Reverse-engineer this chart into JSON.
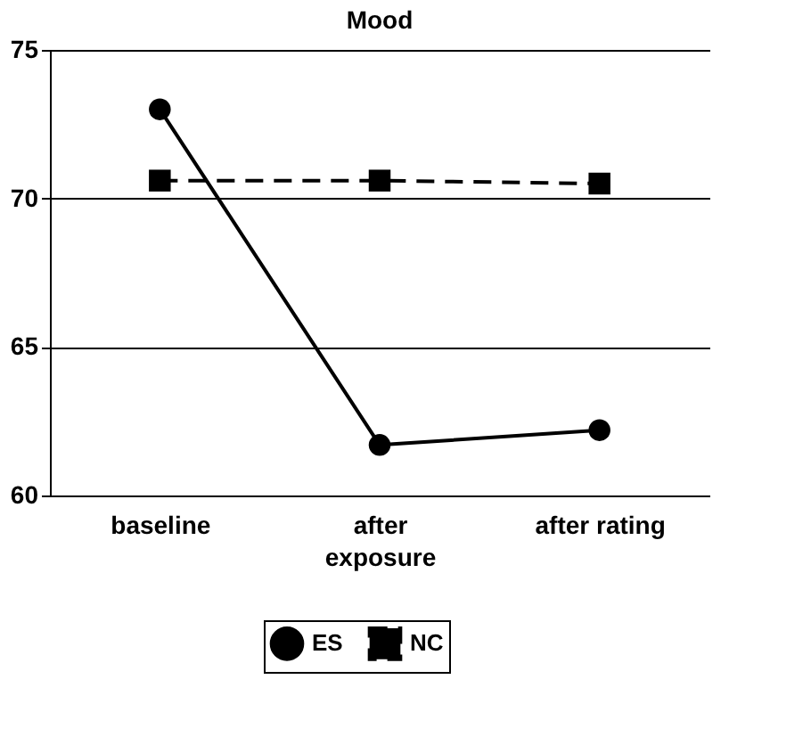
{
  "chart_data": {
    "type": "line",
    "title": "Mood",
    "categories": [
      "baseline",
      "after exposure",
      "after rating"
    ],
    "series": [
      {
        "name": "ES",
        "color": "#000000",
        "values": [
          73,
          61.7,
          62.2
        ],
        "marker": "circle",
        "line_style": "solid"
      },
      {
        "name": "NC",
        "color": "#000000",
        "values": [
          70.6,
          70.6,
          70.5
        ],
        "marker": "square",
        "line_style": "dashed"
      }
    ],
    "ylim": [
      60,
      75
    ],
    "yticks": [
      60,
      65,
      70,
      75
    ],
    "grid": "y",
    "legend": "bottom"
  }
}
